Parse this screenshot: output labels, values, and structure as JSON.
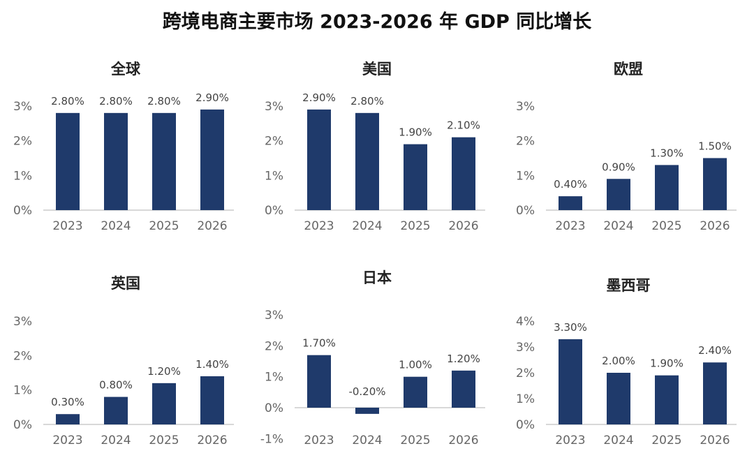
{
  "title": "跨境电商主要市场 2023-2026 年 GDP 同比增长",
  "colors": {
    "bar": "#1f3a6b",
    "axis_text": "#666666",
    "baseline": "#cccccc"
  },
  "chart_data": [
    {
      "type": "bar",
      "title": "全球",
      "categories": [
        "2023",
        "2024",
        "2025",
        "2026"
      ],
      "values": [
        2.8,
        2.8,
        2.8,
        2.9
      ],
      "data_labels": [
        "2.80%",
        "2.80%",
        "2.80%",
        "2.90%"
      ],
      "yticks": [
        "0%",
        "1%",
        "2%",
        "3%"
      ],
      "ylim": [
        0,
        3
      ],
      "grid": false
    },
    {
      "type": "bar",
      "title": "美国",
      "categories": [
        "2023",
        "2024",
        "2025",
        "2026"
      ],
      "values": [
        2.9,
        2.8,
        1.9,
        2.1
      ],
      "data_labels": [
        "2.90%",
        "2.80%",
        "1.90%",
        "2.10%"
      ],
      "yticks": [
        "0%",
        "1%",
        "2%",
        "3%"
      ],
      "ylim": [
        0,
        3
      ],
      "grid": false
    },
    {
      "type": "bar",
      "title": "欧盟",
      "categories": [
        "2023",
        "2024",
        "2025",
        "2026"
      ],
      "values": [
        0.4,
        0.9,
        1.3,
        1.5
      ],
      "data_labels": [
        "0.40%",
        "0.90%",
        "1.30%",
        "1.50%"
      ],
      "yticks": [
        "0%",
        "1%",
        "2%",
        "3%"
      ],
      "ylim": [
        0,
        3
      ],
      "grid": false
    },
    {
      "type": "bar",
      "title": "英国",
      "categories": [
        "2023",
        "2024",
        "2025",
        "2026"
      ],
      "values": [
        0.3,
        0.8,
        1.2,
        1.4
      ],
      "data_labels": [
        "0.30%",
        "0.80%",
        "1.20%",
        "1.40%"
      ],
      "yticks": [
        "0%",
        "1%",
        "2%",
        "3%"
      ],
      "ylim": [
        0,
        3
      ],
      "grid": false
    },
    {
      "type": "bar",
      "title": "日本",
      "categories": [
        "2023",
        "2024",
        "2025",
        "2026"
      ],
      "values": [
        1.7,
        -0.2,
        1.0,
        1.2
      ],
      "data_labels": [
        "1.70%",
        "-0.20%",
        "1.00%",
        "1.20%"
      ],
      "yticks": [
        "-1%",
        "0%",
        "1%",
        "2%",
        "3%"
      ],
      "ylim": [
        -1,
        3
      ],
      "grid": false
    },
    {
      "type": "bar",
      "title": "墨西哥",
      "categories": [
        "2023",
        "2024",
        "2025",
        "2026"
      ],
      "values": [
        3.3,
        2.0,
        1.9,
        2.4
      ],
      "data_labels": [
        "3.30%",
        "2.00%",
        "1.90%",
        "2.40%"
      ],
      "yticks": [
        "0%",
        "1%",
        "2%",
        "3%",
        "4%"
      ],
      "ylim": [
        0,
        4
      ],
      "grid": false
    }
  ]
}
